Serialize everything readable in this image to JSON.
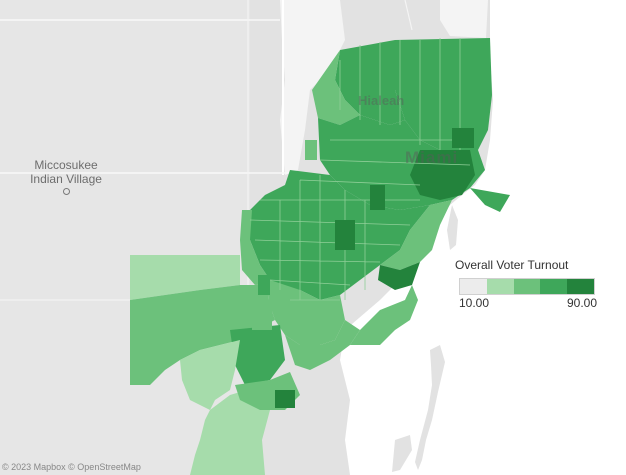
{
  "map": {
    "land_color": "#e2e2e2",
    "water_color": "#ffffff",
    "road_color": "#ffffff",
    "urban_gap_color": "#ffffff"
  },
  "places": {
    "village_line1": "Miccosukee",
    "village_line2": "Indian Village",
    "city_major": "Miami",
    "city_minor": "Hialeah"
  },
  "copyright": "© 2023 Mapbox © OpenStreetMap",
  "legend": {
    "title": "Overall Voter Turnout",
    "min_label": "10.00",
    "max_label": "90.00",
    "colors": [
      "#ececec",
      "#a6dcab",
      "#6cc17b",
      "#3ea75a",
      "#23833c"
    ]
  },
  "choropleth": {
    "measure": "Overall Voter Turnout",
    "range": [
      10,
      90
    ],
    "region_values": [
      {
        "region": "north-east-block",
        "value": 66
      },
      {
        "region": "north-central-block",
        "value": 70
      },
      {
        "region": "north-west-block",
        "value": 62
      },
      {
        "region": "diagonal-corridor",
        "value": 64
      },
      {
        "region": "central-block",
        "value": 66
      },
      {
        "region": "west-suburbs",
        "value": 62
      },
      {
        "region": "south-central",
        "value": 60
      },
      {
        "region": "south-west-block",
        "value": 55
      },
      {
        "region": "far-south-west",
        "value": 40
      },
      {
        "region": "homestead-area",
        "value": 42
      },
      {
        "region": "coastal-south",
        "value": 54
      },
      {
        "region": "biscayne-coast",
        "value": 78
      },
      {
        "region": "downtown-core",
        "value": 86
      }
    ]
  }
}
